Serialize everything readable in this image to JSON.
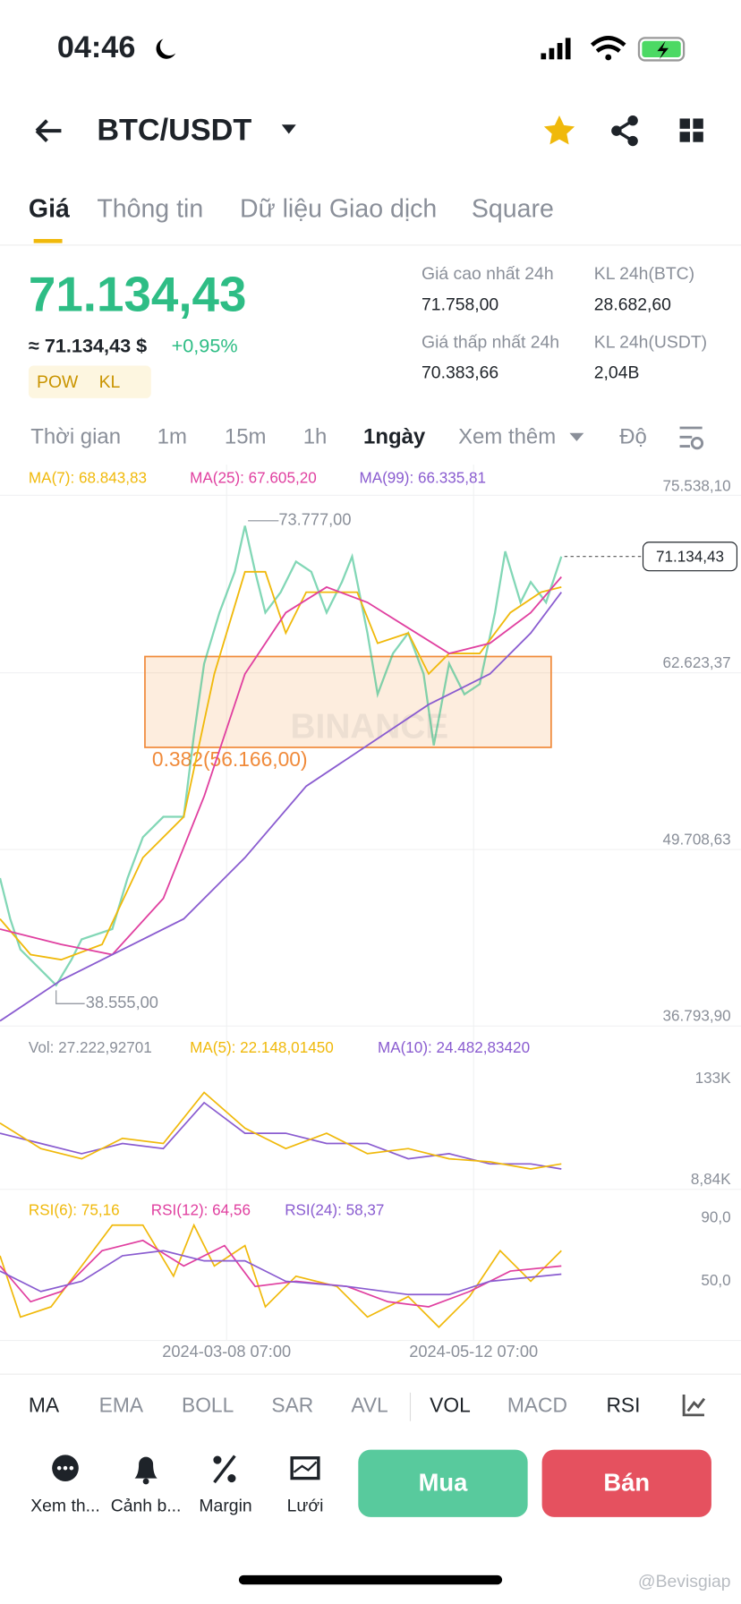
{
  "status": {
    "time": "04:46"
  },
  "header": {
    "pair": "BTC/USDT"
  },
  "tabs": [
    "Giá",
    "Thông tin",
    "Dữ liệu Giao dịch",
    "Square"
  ],
  "price": {
    "last": "71.134,43",
    "approx": "≈ 71.134,43 $",
    "change": "+0,95%",
    "tags": [
      "POW",
      "KL"
    ]
  },
  "stats": [
    {
      "label": "Giá cao nhất 24h",
      "value": "71.758,00"
    },
    {
      "label": "KL 24h(BTC)",
      "value": "28.682,60"
    },
    {
      "label": "Giá thấp nhất 24h",
      "value": "70.383,66"
    },
    {
      "label": "KL 24h(USDT)",
      "value": "2,04B"
    }
  ],
  "intervals": [
    "Thời gian",
    "1m",
    "15m",
    "1h",
    "1ngày",
    "Xem thêm",
    "Độ"
  ],
  "ma_legend": [
    "MA(7): 68.843,83",
    "MA(25): 67.605,20",
    "MA(99): 66.335,81"
  ],
  "price_axis": [
    "75.538,10",
    "62.623,37",
    "49.708,63",
    "36.793,90"
  ],
  "current_price": "71.134,43",
  "annotations": {
    "high": "73.777,00",
    "low": "38.555,00",
    "fib": "0.382(56.166,00)",
    "watermark": "BINANCE"
  },
  "vol_legend": [
    "Vol: 27.222,92701",
    "MA(5): 22.148,01450",
    "MA(10): 24.482,83420"
  ],
  "vol_axis": [
    "133K",
    "8,84K"
  ],
  "rsi_legend": [
    "RSI(6): 75,16",
    "RSI(12): 64,56",
    "RSI(24): 58,37"
  ],
  "rsi_axis": [
    "90,0",
    "50,0"
  ],
  "dates": [
    "2024-03-08 07:00",
    "2024-05-12 07:00"
  ],
  "indicators": [
    "MA",
    "EMA",
    "BOLL",
    "SAR",
    "AVL",
    "VOL",
    "MACD",
    "RSI"
  ],
  "actions": [
    "Xem th...",
    "Cảnh b...",
    "Margin",
    "Lưới"
  ],
  "buttons": {
    "buy": "Mua",
    "sell": "Bán"
  },
  "credit": "@Bevisgiap"
}
